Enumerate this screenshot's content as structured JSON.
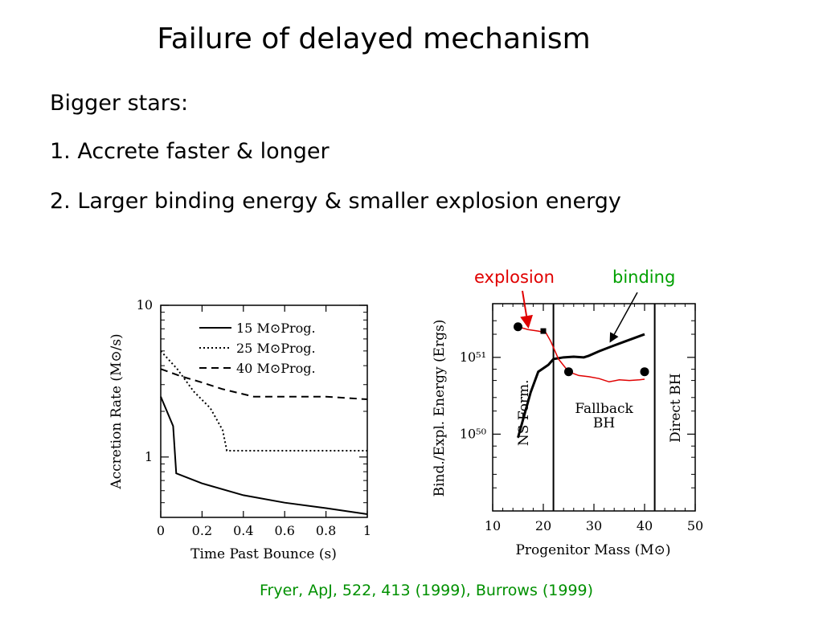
{
  "slide": {
    "title": "Failure of delayed mechanism",
    "bullets": [
      "Bigger stars:",
      "1. Accrete faster & longer",
      "2. Larger binding energy & smaller explosion energy"
    ],
    "annotations": {
      "explosion": "explosion",
      "binding": "binding"
    },
    "citation": "Fryer, ApJ, 522, 413 (1999), Burrows (1999)",
    "colors": {
      "explosion": "#e00000",
      "binding": "#00a000",
      "citation": "#009000"
    }
  },
  "chart_data": [
    {
      "type": "line",
      "xlabel": "Time Past Bounce (s)",
      "ylabel": "Accretion Rate (M⊙/s)",
      "xlim": [
        0,
        1
      ],
      "ylim": [
        0.4,
        10
      ],
      "yscale": "log",
      "x_ticks": [
        "0",
        "0.2",
        "0.4",
        "0.6",
        "0.8",
        "1"
      ],
      "y_ticks": [
        "10",
        "1"
      ],
      "legend_position": "top-right",
      "series": [
        {
          "name": "15 M⊙Prog.",
          "style": "solid",
          "x": [
            0,
            0.06,
            0.075,
            0.2,
            0.4,
            0.6,
            0.8,
            1.0
          ],
          "y": [
            2.5,
            1.6,
            0.78,
            0.67,
            0.56,
            0.5,
            0.46,
            0.42
          ]
        },
        {
          "name": "25 M⊙Prog.",
          "style": "dotted",
          "x": [
            0,
            0.08,
            0.16,
            0.24,
            0.3,
            0.32,
            0.5,
            0.8,
            1.0
          ],
          "y": [
            5.0,
            3.8,
            2.7,
            2.1,
            1.5,
            1.1,
            1.1,
            1.1,
            1.1
          ]
        },
        {
          "name": "40 M⊙Prog.",
          "style": "dashed",
          "x": [
            0,
            0.1,
            0.2,
            0.3,
            0.45,
            0.6,
            0.8,
            1.0
          ],
          "y": [
            3.8,
            3.4,
            3.1,
            2.8,
            2.5,
            2.5,
            2.5,
            2.4
          ]
        }
      ]
    },
    {
      "type": "line",
      "xlabel": "Progenitor Mass (M⊙)",
      "ylabel": "Bind./Expl. Energy (Ergs)",
      "xlim": [
        10,
        50
      ],
      "ylim": [
        1e+49,
        5e+51
      ],
      "yscale": "log",
      "x_ticks": [
        "10",
        "20",
        "30",
        "40",
        "50"
      ],
      "y_ticks": [
        "10⁵¹",
        "10⁵⁰"
      ],
      "region_boundaries_x": [
        22,
        42
      ],
      "regions": [
        "NS Form.",
        "Fallback BH",
        "Direct BH"
      ],
      "series": [
        {
          "name": "binding",
          "style": "solid",
          "x": [
            15,
            17.5,
            19,
            21,
            22,
            24,
            26,
            28,
            29,
            31,
            33,
            36,
            40
          ],
          "y": [
            9e+49,
            3.5e+50,
            6.5e+50,
            8e+50,
            9.5e+50,
            1e+51,
            1.02e+51,
            1e+51,
            1.05e+51,
            1.2e+51,
            1.35e+51,
            1.6e+51,
            2e+51
          ]
        },
        {
          "name": "explosion",
          "style": "solid",
          "color": "#e00000",
          "x": [
            15,
            17,
            19,
            20.5,
            21.5,
            23,
            25,
            27,
            29,
            31,
            33,
            35,
            37,
            39,
            40
          ],
          "y": [
            2.5e+51,
            2.3e+51,
            2.2e+51,
            2.1e+51,
            1.6e+51,
            9.5e+50,
            6.5e+50,
            5.8e+50,
            5.6e+50,
            5.3e+50,
            4.8e+50,
            5.1e+50,
            5e+50,
            5.1e+50,
            5.2e+50
          ]
        },
        {
          "name": "markers",
          "style": "points",
          "x": [
            15,
            20,
            25,
            40
          ],
          "y": [
            2.5e+51,
            2.2e+51,
            6.5e+50,
            6.5e+50
          ]
        }
      ]
    }
  ]
}
